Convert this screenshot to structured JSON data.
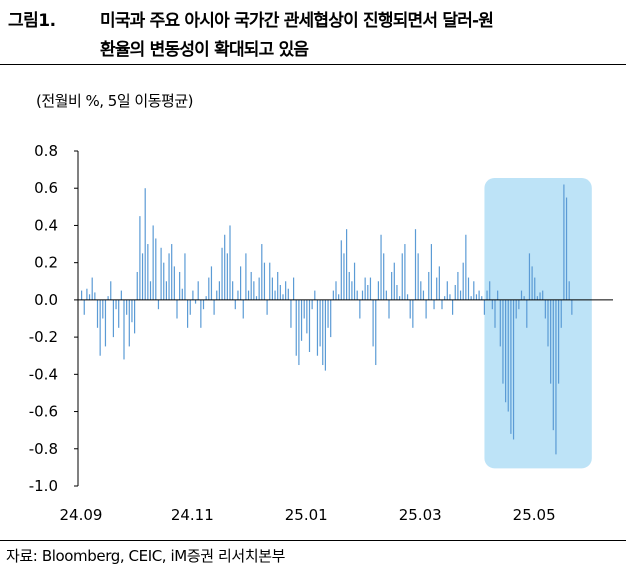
{
  "figure": {
    "label": "그림1.",
    "title_line1": "미국과 주요 아시아 국가간 관세협상이 진행되면서 달러-원",
    "title_line2": "환율의 변동성이 확대되고 있음"
  },
  "unit_note": "(전월비 %, 5일 이동평균)",
  "source": "자료: Bloomberg, CEIC, iM증권 리서치본부",
  "chart_data": {
    "type": "bar",
    "title": "",
    "xlabel": "",
    "ylabel": "",
    "ylim": [
      -1.0,
      0.8
    ],
    "yticks": [
      0.8,
      0.6,
      0.4,
      0.2,
      0.0,
      -0.2,
      -0.4,
      -0.6,
      -0.8,
      -1.0
    ],
    "ytick_labels": [
      "0.8",
      "0.6",
      "0.4",
      "0.2",
      "0.0",
      "-0.2",
      "-0.4",
      "-0.6",
      "-0.8",
      "-1.0"
    ],
    "xtick_labels": [
      "24.09",
      "24.11",
      "25.01",
      "25.03",
      "25.05"
    ],
    "xtick_index": [
      0,
      42,
      85,
      128,
      171
    ],
    "bar_color": "#5b9bd5",
    "highlight_color": "#bde3f7",
    "highlight_range_index": [
      153,
      192
    ],
    "grid": false,
    "legend": "none",
    "series": [
      {
        "values": [
          0.05,
          -0.08,
          0.06,
          0.03,
          0.12,
          0.04,
          -0.15,
          -0.3,
          -0.1,
          -0.25,
          0.02,
          0.1,
          -0.2,
          -0.05,
          -0.15,
          0.05,
          -0.32,
          -0.08,
          -0.25,
          -0.12,
          -0.18,
          0.15,
          0.45,
          0.25,
          0.6,
          0.3,
          0.1,
          0.4,
          0.33,
          -0.05,
          0.28,
          0.2,
          0.1,
          0.25,
          0.3,
          0.18,
          -0.1,
          0.15,
          0.06,
          0.25,
          -0.15,
          -0.08,
          0.05,
          -0.02,
          0.1,
          -0.15,
          -0.05,
          0.02,
          0.12,
          0.18,
          -0.08,
          0.05,
          0.1,
          0.28,
          0.35,
          0.25,
          0.4,
          0.1,
          -0.05,
          0.05,
          0.18,
          -0.1,
          0.25,
          0.05,
          0.15,
          0.1,
          0.02,
          0.12,
          0.3,
          0.2,
          -0.08,
          0.2,
          0.12,
          0.05,
          0.15,
          0.08,
          0.03,
          0.1,
          0.06,
          -0.15,
          0.12,
          -0.3,
          -0.35,
          -0.22,
          -0.1,
          -0.18,
          -0.28,
          -0.05,
          0.05,
          -0.3,
          -0.25,
          -0.35,
          -0.38,
          -0.15,
          -0.2,
          0.05,
          0.1,
          0.03,
          0.32,
          0.25,
          0.38,
          0.15,
          0.1,
          0.2,
          0.05,
          -0.1,
          0.05,
          0.12,
          0.08,
          0.12,
          -0.25,
          -0.35,
          0.1,
          0.35,
          0.25,
          0.05,
          -0.1,
          0.15,
          0.2,
          0.08,
          0.02,
          0.25,
          0.3,
          0.03,
          -0.1,
          -0.15,
          0.38,
          0.25,
          0.1,
          0.05,
          -0.1,
          0.15,
          0.3,
          -0.05,
          0.12,
          0.18,
          -0.05,
          0.02,
          0.1,
          0.03,
          -0.08,
          0.08,
          0.15,
          0.05,
          0.2,
          0.35,
          0.12,
          0.02,
          0.1,
          0.03,
          0.05,
          0.02,
          -0.08,
          0.05,
          0.1,
          -0.05,
          -0.15,
          0.05,
          -0.25,
          -0.45,
          -0.55,
          -0.6,
          -0.72,
          -0.75,
          -0.1,
          -0.05,
          0.05,
          0.02,
          -0.15,
          0.25,
          0.18,
          0.12,
          0.02,
          0.04,
          0.05,
          -0.1,
          -0.25,
          -0.45,
          -0.7,
          -0.83,
          -0.45,
          -0.15,
          0.62,
          0.55,
          0.1,
          -0.08
        ]
      }
    ]
  }
}
